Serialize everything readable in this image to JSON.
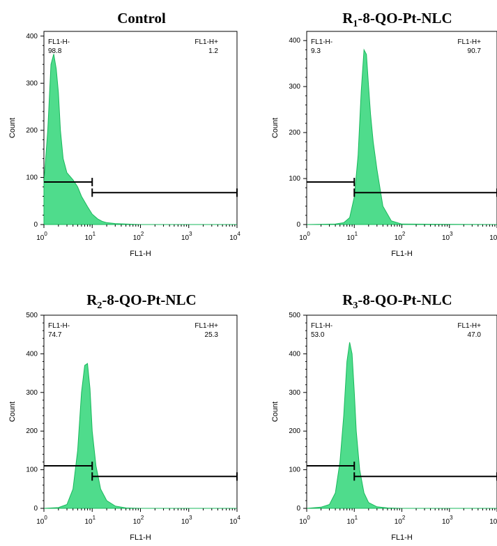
{
  "chart_data": [
    {
      "type": "area",
      "title_main": "Control",
      "title_sub": "",
      "title_rest": "",
      "xlabel": "FL1-H",
      "ylabel": "Count",
      "xscale": "log",
      "xlim": [
        1,
        10000
      ],
      "ylim": [
        0,
        410
      ],
      "yticks": [
        0,
        100,
        200,
        300,
        400
      ],
      "gate_neg_label": "FL1-H-",
      "gate_neg_value": "98.8",
      "gate_pos_label": "FL1-H+",
      "gate_pos_value": "1.2",
      "gate_threshold": 10,
      "histogram": {
        "x": [
          1,
          1.2,
          1.4,
          1.6,
          1.8,
          2.0,
          2.2,
          2.5,
          3,
          4,
          5,
          6,
          8,
          10,
          13,
          16,
          20,
          30,
          50,
          100,
          10000
        ],
        "y": [
          90,
          200,
          340,
          362,
          330,
          280,
          200,
          140,
          110,
          95,
          80,
          60,
          38,
          22,
          12,
          7,
          4,
          2,
          1,
          0,
          0
        ]
      }
    },
    {
      "type": "area",
      "title_main": "R",
      "title_sub": "1",
      "title_rest": "-8-QO-Pt-NLC",
      "xlabel": "FL1-H",
      "ylabel": "Count",
      "xscale": "log",
      "xlim": [
        1,
        10000
      ],
      "ylim": [
        0,
        420
      ],
      "yticks": [
        0,
        100,
        200,
        300,
        400
      ],
      "gate_neg_label": "FL1-H-",
      "gate_neg_value": "9.3",
      "gate_pos_label": "FL1-H+",
      "gate_pos_value": "90.7",
      "gate_threshold": 10,
      "histogram": {
        "x": [
          1,
          4,
          6,
          8,
          10,
          12,
          14,
          16,
          18,
          20,
          22,
          25,
          30,
          40,
          60,
          100,
          10000
        ],
        "y": [
          0,
          1,
          4,
          15,
          60,
          150,
          290,
          380,
          370,
          300,
          240,
          180,
          120,
          40,
          8,
          1,
          0
        ]
      }
    },
    {
      "type": "area",
      "title_main": "R",
      "title_sub": "2",
      "title_rest": "-8-QO-Pt-NLC",
      "xlabel": "FL1-H",
      "ylabel": "Count",
      "xscale": "log",
      "xlim": [
        1,
        10000
      ],
      "ylim": [
        0,
        500
      ],
      "yticks": [
        0,
        100,
        200,
        300,
        400,
        500
      ],
      "gate_neg_label": "FL1-H-",
      "gate_neg_value": "74.7",
      "gate_pos_label": "FL1-H+",
      "gate_pos_value": "25.3",
      "gate_threshold": 10,
      "histogram": {
        "x": [
          1,
          2,
          3,
          4,
          5,
          6,
          7,
          8,
          9,
          10,
          12,
          15,
          20,
          30,
          50,
          100,
          10000
        ],
        "y": [
          0,
          2,
          10,
          50,
          150,
          300,
          370,
          375,
          310,
          200,
          110,
          50,
          20,
          6,
          1,
          0,
          0
        ]
      }
    },
    {
      "type": "area",
      "title_main": "R",
      "title_sub": "3",
      "title_rest": "-8-QO-Pt-NLC",
      "xlabel": "FL1-H",
      "ylabel": "Count",
      "xscale": "log",
      "xlim": [
        1,
        10000
      ],
      "ylim": [
        0,
        500
      ],
      "yticks": [
        0,
        100,
        200,
        300,
        400,
        500
      ],
      "gate_neg_label": "FL1-H-",
      "gate_neg_value": "53.0",
      "gate_pos_label": "FL1-H+",
      "gate_pos_value": "47.0",
      "gate_threshold": 10,
      "histogram": {
        "x": [
          1,
          2,
          3,
          4,
          5,
          6,
          7,
          8,
          9,
          10,
          11,
          13,
          16,
          20,
          30,
          50,
          100,
          10000
        ],
        "y": [
          0,
          3,
          10,
          40,
          120,
          240,
          380,
          430,
          400,
          300,
          200,
          100,
          40,
          15,
          4,
          1,
          0,
          0
        ]
      }
    }
  ]
}
